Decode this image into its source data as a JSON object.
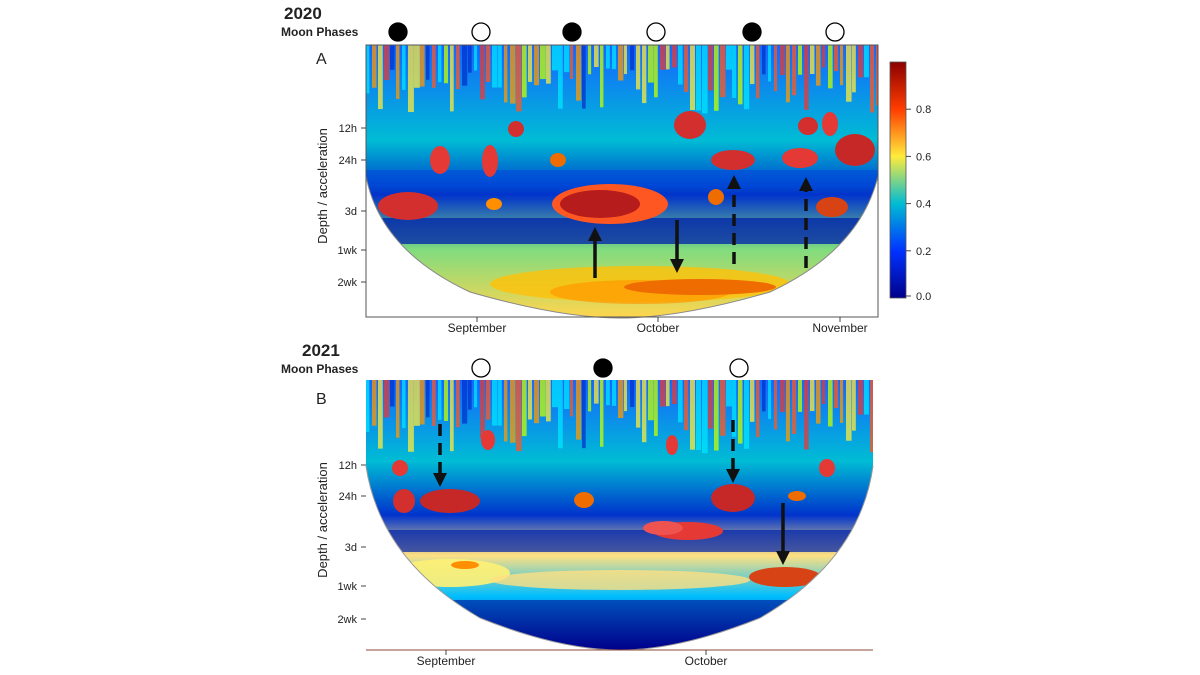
{
  "chart_data": [
    {
      "type": "heatmap",
      "panel_label": "A",
      "year_label": "2020",
      "moon_label": "Moon Phases",
      "moon_phases": [
        "new",
        "full",
        "new",
        "full",
        "new",
        "full"
      ],
      "ylabel": "Depth / acceleration",
      "yticks": [
        "12h",
        "24h",
        "3d",
        "1wk",
        "2wk"
      ],
      "xticks": [
        "September",
        "October",
        "November"
      ],
      "arrows": [
        {
          "style": "solid",
          "direction": "up"
        },
        {
          "style": "solid",
          "direction": "down"
        },
        {
          "style": "dashed",
          "direction": "up"
        },
        {
          "style": "dashed",
          "direction": "up"
        }
      ],
      "colorbar": {
        "ticks": [
          "0.0",
          "0.2",
          "0.4",
          "0.6",
          "0.8"
        ],
        "range": [
          0,
          1
        ]
      }
    },
    {
      "type": "heatmap",
      "panel_label": "B",
      "year_label": "2021",
      "moon_label": "Moon Phases",
      "moon_phases": [
        "full",
        "new",
        "full"
      ],
      "ylabel": "Depth / acceleration",
      "yticks": [
        "12h",
        "24h",
        "3d",
        "1wk",
        "2wk"
      ],
      "xticks": [
        "September",
        "October"
      ],
      "arrows": [
        {
          "style": "dashed",
          "direction": "down"
        },
        {
          "style": "dashed",
          "direction": "down"
        },
        {
          "style": "solid",
          "direction": "down"
        }
      ]
    }
  ],
  "colors": {
    "low": "#00008b",
    "mid": "#00bcd4",
    "midhigh": "#ffeb3b",
    "high": "#8b0000"
  }
}
